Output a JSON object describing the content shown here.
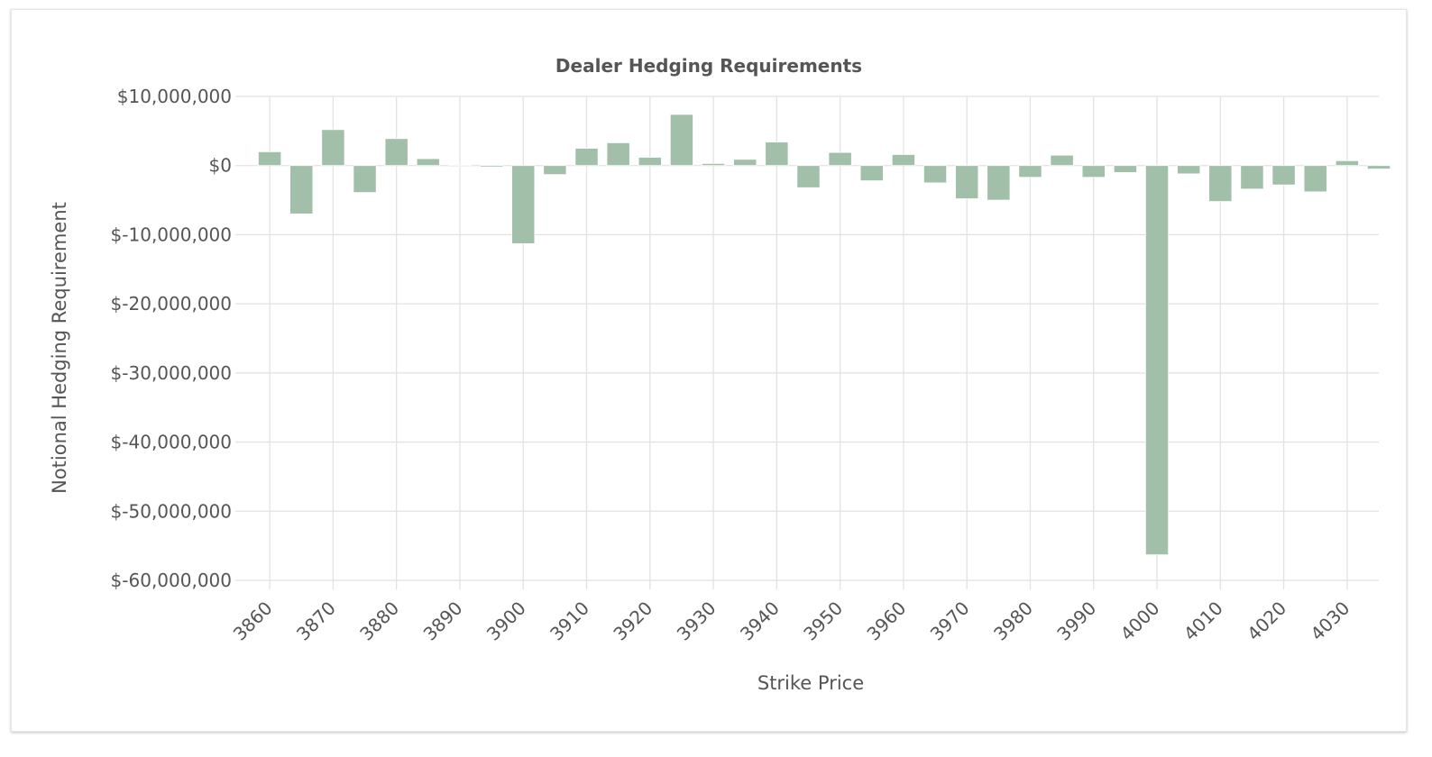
{
  "chart_data": {
    "type": "bar",
    "title": "Dealer Hedging Requirements",
    "xlabel": "Strike Price",
    "ylabel": "Notional Hedging Requirement",
    "ylim": [
      -60000000,
      10000000
    ],
    "y_ticks": [
      10000000,
      0,
      -10000000,
      -20000000,
      -30000000,
      -40000000,
      -50000000,
      -60000000
    ],
    "y_tick_labels": [
      "$10,000,000",
      "$0",
      "$-10,000,000",
      "$-20,000,000",
      "$-30,000,000",
      "$-40,000,000",
      "$-50,000,000",
      "$-60,000,000"
    ],
    "x_ticks": [
      3860,
      3870,
      3880,
      3890,
      3900,
      3910,
      3920,
      3930,
      3940,
      3950,
      3960,
      3970,
      3980,
      3990,
      4000,
      4010,
      4020,
      4030
    ],
    "x_tick_labels": [
      "3860",
      "3870",
      "3880",
      "3890",
      "3900",
      "3910",
      "3920",
      "3930",
      "3940",
      "3950",
      "3960",
      "3970",
      "3980",
      "3990",
      "4000",
      "4010",
      "4020",
      "4030"
    ],
    "xlim": [
      3856,
      4035
    ],
    "grid": true,
    "bar_color": "#a1bfa9",
    "x": [
      3860,
      3865,
      3870,
      3875,
      3880,
      3885,
      3890,
      3895,
      3900,
      3905,
      3910,
      3915,
      3920,
      3925,
      3930,
      3935,
      3940,
      3945,
      3950,
      3955,
      3960,
      3965,
      3970,
      3975,
      3980,
      3985,
      3990,
      3995,
      4000,
      4005,
      4010,
      4015,
      4020,
      4025,
      4030,
      4035
    ],
    "values": [
      2000000,
      -7000000,
      5200000,
      -3900000,
      3900000,
      1000000,
      -50000,
      -200000,
      -11300000,
      -1300000,
      2500000,
      3300000,
      1200000,
      7400000,
      300000,
      900000,
      3400000,
      -3200000,
      1900000,
      -2200000,
      1600000,
      -2500000,
      -4800000,
      -5000000,
      -1700000,
      1500000,
      -1700000,
      -1000000,
      -56300000,
      -1200000,
      -5200000,
      -3400000,
      -2800000,
      -3800000,
      700000,
      -500000
    ]
  }
}
